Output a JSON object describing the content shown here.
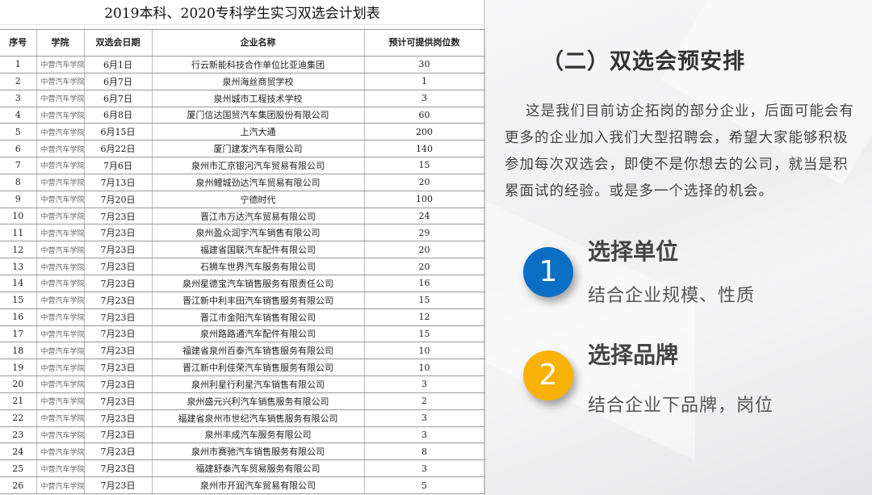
{
  "table": {
    "title": "2019本科、2020专科学生实习双选会计划表",
    "headers": [
      "序号",
      "学院",
      "双选会日期",
      "企业名称",
      "预计可提供岗位数"
    ],
    "rows": [
      [
        "1",
        "中营汽车学院",
        "6月1日",
        "行云新能科技合作单位比亚迪集团",
        "30"
      ],
      [
        "2",
        "中营汽车学院",
        "6月7日",
        "泉州海丝商贸学校",
        "1"
      ],
      [
        "3",
        "中营汽车学院",
        "6月7日",
        "泉州城市工程技术学校",
        "3"
      ],
      [
        "4",
        "中营汽车学院",
        "6月8日",
        "厦门信达国贸汽车集团股份有限公司",
        "60"
      ],
      [
        "5",
        "中营汽车学院",
        "6月15日",
        "上汽大通",
        "200"
      ],
      [
        "6",
        "中营汽车学院",
        "6月22日",
        "厦门建发汽车有限公司",
        "140"
      ],
      [
        "7",
        "中营汽车学院",
        "7月6日",
        "泉州市汇京银河汽车贸易有限公司",
        "15"
      ],
      [
        "8",
        "中营汽车学院",
        "7月13日",
        "泉州鲤城劲达汽车贸易有限公司",
        "20"
      ],
      [
        "9",
        "中营汽车学院",
        "7月20日",
        "宁德时代",
        "100"
      ],
      [
        "10",
        "中营汽车学院",
        "7月23日",
        "晋江市万达汽车贸易有限公司",
        "24"
      ],
      [
        "11",
        "中营汽车学院",
        "7月23日",
        "泉州盈众润宇汽车销售有限公司",
        "29"
      ],
      [
        "12",
        "中营汽车学院",
        "7月23日",
        "福建省国联汽车配件有限公司",
        "20"
      ],
      [
        "13",
        "中营汽车学院",
        "7月23日",
        "石狮车世界汽车服务有限公司",
        "20"
      ],
      [
        "14",
        "中营汽车学院",
        "7月23日",
        "泉州星德宝汽车销售服务有限责任公司",
        "16"
      ],
      [
        "15",
        "中营汽车学院",
        "7月23日",
        "晋江新中利丰田汽车销售服务有限公司",
        "15"
      ],
      [
        "16",
        "中营汽车学院",
        "7月23日",
        "晋江市金阳汽车销售有限公司",
        "12"
      ],
      [
        "17",
        "中营汽车学院",
        "7月23日",
        "泉州路路通汽车配件有限公司",
        "15"
      ],
      [
        "18",
        "中营汽车学院",
        "7月23日",
        "福建省泉州百泰汽车销售服务有限公司",
        "10"
      ],
      [
        "19",
        "中营汽车学院",
        "7月23日",
        "晋江新中利佳荣汽车销售服务有限公司",
        "10"
      ],
      [
        "20",
        "中营汽车学院",
        "7月23日",
        "泉州利星行利星汽车销售有限公司",
        "3"
      ],
      [
        "21",
        "中营汽车学院",
        "7月23日",
        "泉州盛元兴利汽车销售服务有限公司",
        "2"
      ],
      [
        "22",
        "中营汽车学院",
        "7月23日",
        "福建省泉州市世纪汽车销售服务有限公司",
        "3"
      ],
      [
        "23",
        "中营汽车学院",
        "7月23日",
        "泉州丰成汽车服务有限公司",
        "3"
      ],
      [
        "24",
        "中营汽车学院",
        "7月23日",
        "泉州市赛驰汽车销售服务有限公司",
        "8"
      ],
      [
        "25",
        "中营汽车学院",
        "7月23日",
        "福建舒泰汽车贸易服务有限公司",
        "3"
      ],
      [
        "26",
        "中营汽车学院",
        "7月23日",
        "泉州市开润汽车贸易有限公司",
        "5"
      ]
    ]
  },
  "slide": {
    "heading": "（二）双选会预安排",
    "paragraph": "这是我们目前访企拓岗的部分企业，后面可能会有更多的企业加入我们大型招聘会，希望大家能够积极参加每次双选会，即使不是你想去的公司，就当是积累面试的经验。或是多一个选择的机会。",
    "items": [
      {
        "number": "1",
        "title": "选择单位",
        "subtitle": "结合企业规模、性质",
        "color": "#0A6EC4"
      },
      {
        "number": "2",
        "title": "选择品牌",
        "subtitle": "结合企业下品牌，岗位",
        "color": "#F9B208"
      }
    ]
  }
}
